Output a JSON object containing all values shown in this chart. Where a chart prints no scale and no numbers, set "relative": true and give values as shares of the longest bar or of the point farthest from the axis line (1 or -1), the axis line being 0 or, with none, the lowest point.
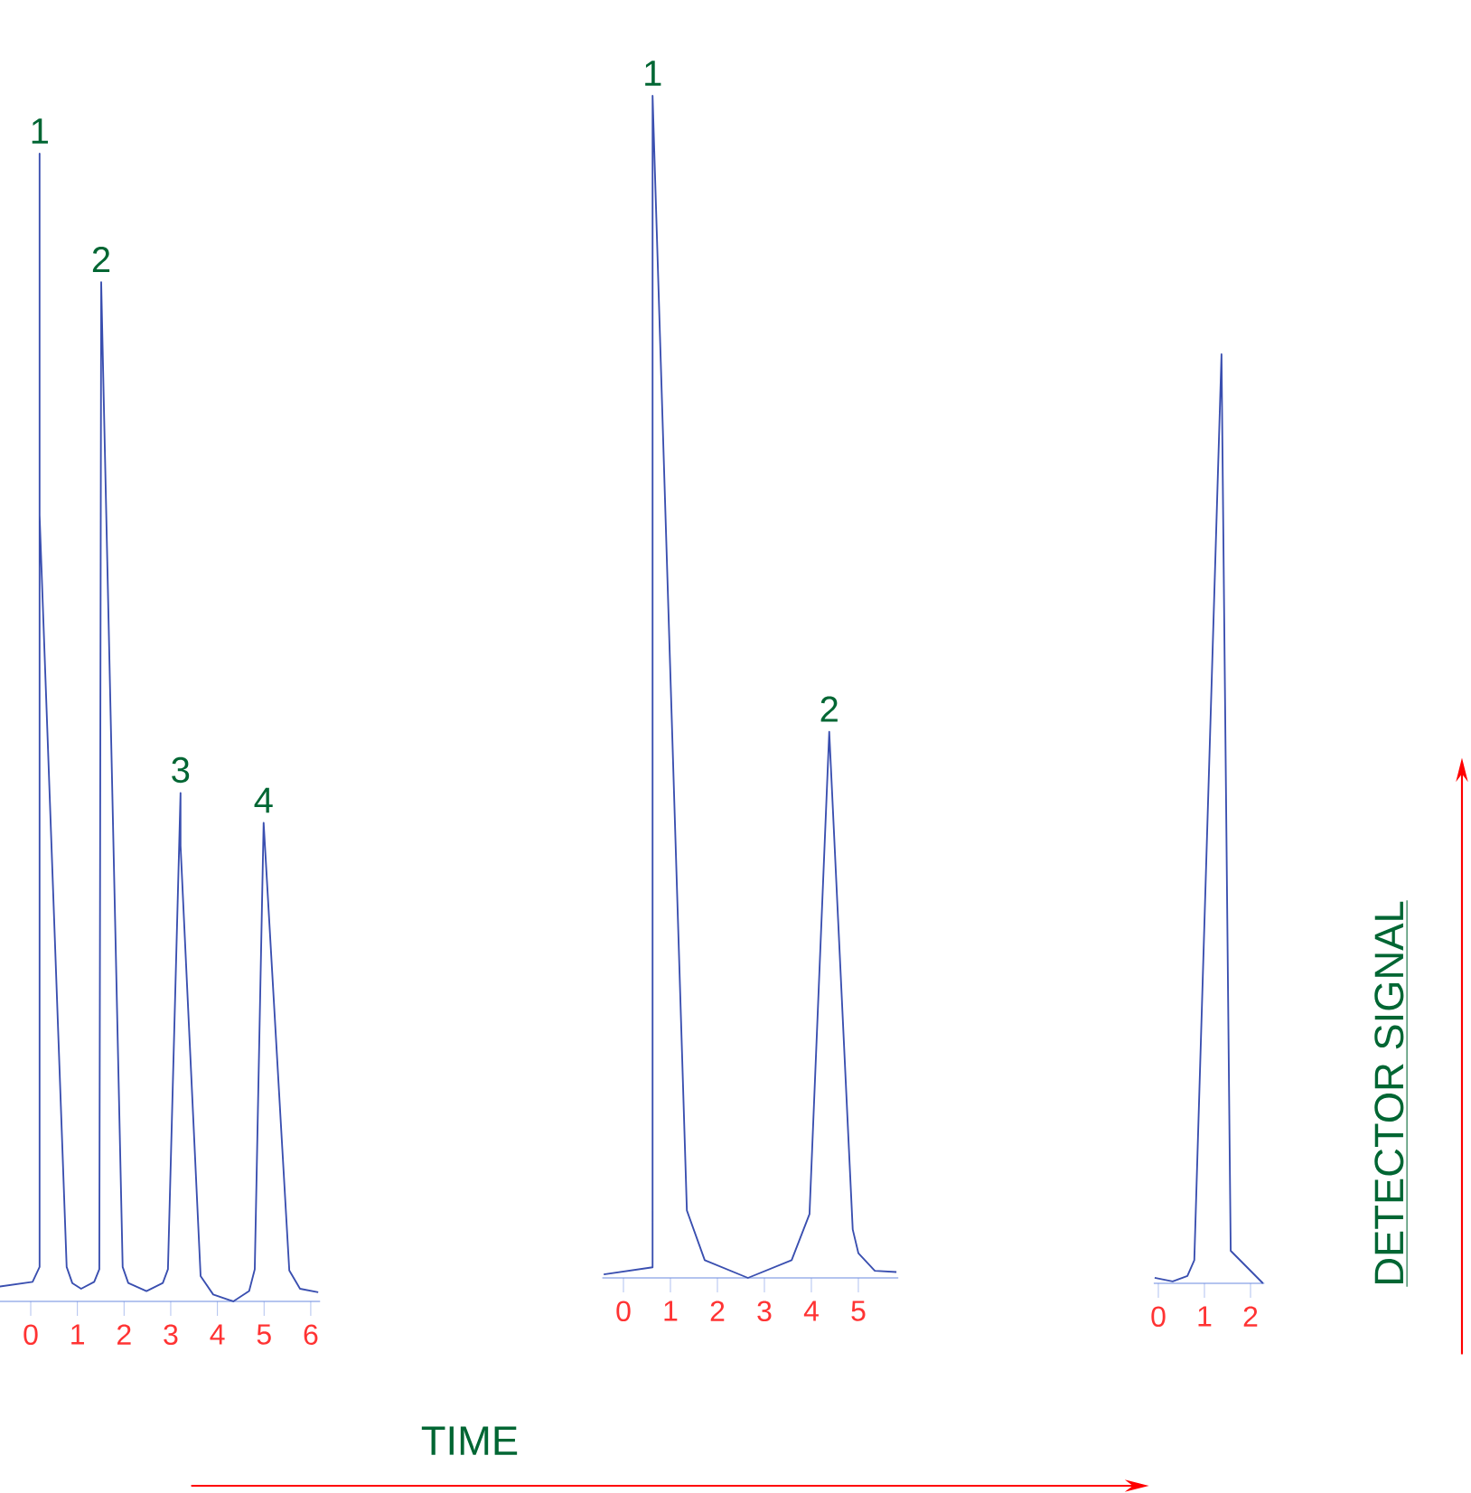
{
  "chart_data": [
    {
      "type": "line",
      "relative": true,
      "xlim": [
        -0.7,
        6.2
      ],
      "xticks": [
        0,
        1,
        2,
        3,
        4,
        5,
        6
      ],
      "tick_labels": "x",
      "xlabel": "TIME",
      "x": [
        -0.66,
        0.04,
        0.19,
        0.19,
        0.19,
        0.77,
        0.89,
        1.08,
        1.36,
        1.47,
        1.51,
        1.97,
        2.09,
        2.48,
        2.83,
        2.94,
        3.21,
        3.21,
        3.64,
        3.91,
        4.34,
        4.68,
        4.8,
        4.99,
        5.54,
        5.77,
        6.16
      ],
      "series": [
        {
          "color": "#3a4fb0",
          "values": [
            0.013,
            0.017,
            0.03,
            1,
            0.685,
            0.03,
            0.016,
            0.011,
            0.017,
            0.028,
            0.888,
            0.03,
            0.016,
            0.009,
            0.016,
            0.028,
            0.443,
            0.397,
            0.022,
            0.006,
            0,
            0.009,
            0.028,
            0.417,
            0.027,
            0.011,
            0.008
          ]
        }
      ],
      "annotations": [
        {
          "text": "1",
          "x": 0.19,
          "y": 1
        },
        {
          "text": "2",
          "x": 1.51,
          "y": 0.888
        },
        {
          "text": "3",
          "x": 3.21,
          "y": 0.443
        },
        {
          "text": "4",
          "x": 4.99,
          "y": 0.417
        }
      ]
    },
    {
      "type": "line",
      "relative": true,
      "xlim": [
        -0.45,
        5.85
      ],
      "xticks": [
        0,
        1,
        2,
        3,
        4,
        5
      ],
      "tick_labels": "x",
      "x": [
        -0.42,
        0.62,
        0.62,
        1.35,
        1.73,
        2.65,
        3.58,
        3.96,
        4.38,
        4.88,
        5.0,
        5.35,
        5.81
      ],
      "series": [
        {
          "color": "#3a4fb0",
          "values": [
            0.003,
            0.009,
            1,
            0.057,
            0.015,
            0,
            0.015,
            0.054,
            0.462,
            0.041,
            0.021,
            0.006,
            0.005
          ]
        }
      ],
      "annotations": [
        {
          "text": "1",
          "x": 0.62,
          "y": 1
        },
        {
          "text": "2",
          "x": 4.38,
          "y": 0.462
        }
      ]
    },
    {
      "type": "line",
      "relative": true,
      "xlim": [
        -0.1,
        2.3
      ],
      "xticks": [
        0,
        1,
        2
      ],
      "tick_labels": "x",
      "ylabel": "DETECTOR SIGNAL",
      "x": [
        -0.08,
        0.31,
        0.63,
        0.78,
        1.37,
        1.57,
        2.27
      ],
      "series": [
        {
          "color": "#3a4fb0",
          "values": [
            0.006,
            0.002,
            0.008,
            0.025,
            1,
            0.035,
            0
          ]
        }
      ]
    }
  ]
}
